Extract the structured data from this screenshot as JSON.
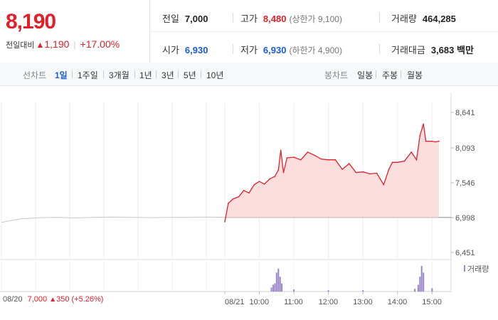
{
  "price": {
    "current": "8,190",
    "change_label": "전일대비",
    "change_arrow": "▲",
    "change_value": "1,190",
    "change_pct": "+17.00%"
  },
  "stats": {
    "prev_close": {
      "label": "전일",
      "value": "7,000"
    },
    "open": {
      "label": "시가",
      "value": "6,930"
    },
    "high": {
      "label": "고가",
      "value": "8,480",
      "note": "(상한가 9,100)"
    },
    "low": {
      "label": "저가",
      "value": "6,930",
      "note": "(하한가 4,900)"
    },
    "volume": {
      "label": "거래량",
      "value": "464,285"
    },
    "amount": {
      "label": "거래대금",
      "value": "3,683",
      "unit": "백만"
    }
  },
  "tabs": {
    "line_label": "선차트",
    "line": [
      "1일",
      "1주일",
      "3개월",
      "1년",
      "3년",
      "5년",
      "10년"
    ],
    "active": "1일",
    "candle_label": "봉차트",
    "candle": [
      "일봉",
      "주봉",
      "월봉"
    ]
  },
  "footer": {
    "date": "08/20",
    "price": "7,000",
    "arrow": "▲",
    "change": "350",
    "pct": "(+5.26%)"
  },
  "colors": {
    "up": "#e0202a",
    "down": "#1a5cd0",
    "fill": "#fbd8d8",
    "prev_line": "#c8c8c8",
    "volume": "#9a86c8"
  },
  "chart_data": {
    "type": "line",
    "y_ticks": [
      "8,641",
      "8,093",
      "7,546",
      "6,998",
      "6,451"
    ],
    "ylim": [
      6451,
      8641
    ],
    "x_tick_labels": [
      "08/21",
      "10:00",
      "11:00",
      "12:00",
      "13:00",
      "14:00",
      "15:00"
    ],
    "reference_line": 6998,
    "legend": "거래량",
    "series": [
      {
        "x": [
          9.0,
          9.1,
          9.25,
          9.4,
          9.55,
          9.7,
          9.85,
          10.0,
          10.15,
          10.3,
          10.45,
          10.55,
          10.62,
          10.7,
          10.8,
          11.0,
          11.2,
          11.4,
          11.6,
          11.8,
          12.0,
          12.2,
          12.4,
          12.6,
          12.8,
          13.0,
          13.2,
          13.4,
          13.6,
          13.75,
          13.85,
          14.0,
          14.2,
          14.4,
          14.55,
          14.65,
          14.75,
          14.82,
          14.9,
          15.0,
          15.1,
          15.2
        ],
        "values": [
          6930,
          7220,
          7290,
          7320,
          7420,
          7380,
          7510,
          7560,
          7520,
          7600,
          7640,
          7740,
          8050,
          7700,
          7930,
          7940,
          7900,
          8020,
          7970,
          7910,
          7900,
          7900,
          7750,
          7840,
          7700,
          7710,
          7680,
          7690,
          7510,
          7750,
          7860,
          7860,
          7880,
          8020,
          7900,
          8280,
          8460,
          8190,
          8190,
          8190,
          8180,
          8190
        ]
      },
      {
        "name": "08/20",
        "x": [
          0,
          0.5,
          1,
          1.5,
          2,
          2.5,
          3,
          3.5,
          4,
          4.5,
          5,
          5.5,
          6
        ],
        "values": [
          6920,
          6975,
          6995,
          7000,
          6990,
          7000,
          7005,
          7000,
          6995,
          7000,
          7000,
          7005,
          7000
        ]
      }
    ],
    "volume": {
      "x": [
        10.35,
        10.4,
        10.45,
        10.5,
        10.55,
        10.6,
        10.65,
        11.0,
        12.0,
        13.0,
        14.5,
        14.6,
        14.65,
        14.7,
        14.75,
        15.0
      ],
      "values": [
        6,
        10,
        12,
        28,
        34,
        22,
        12,
        3,
        2,
        2,
        4,
        10,
        22,
        38,
        28,
        5
      ]
    }
  }
}
